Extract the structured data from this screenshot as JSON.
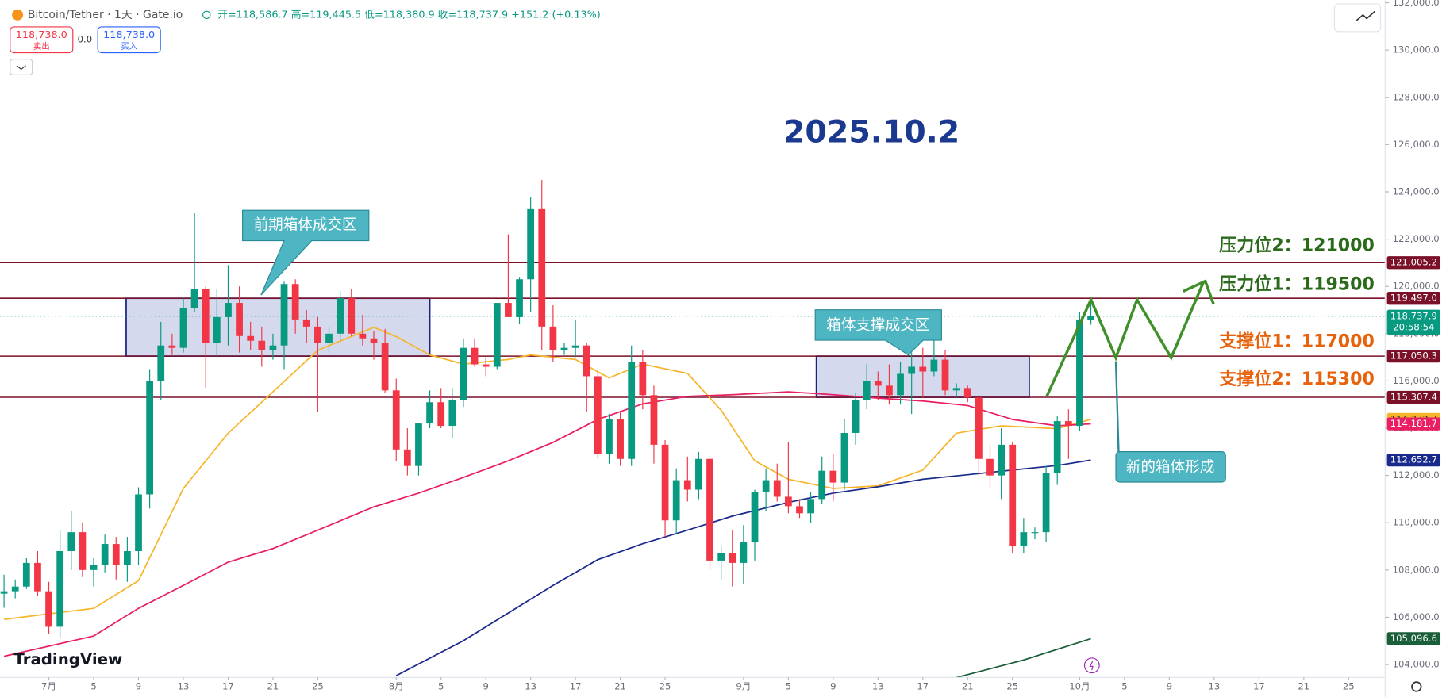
{
  "header": {
    "symbol": "Bitcoin/Tether · 1天 · Gate.io",
    "ohlc": "开=118,586.7 高=119,445.5 低=118,380.9 收=118,737.9 +151.2 (+0.13%)",
    "sell_price": "118,738.0",
    "sell": "卖出",
    "spread": "0.0",
    "buy_price": "118,738.0",
    "buy": "买入"
  },
  "logo": "TradingView",
  "chart_data": {
    "type": "candlestick",
    "title": "2025.10.2",
    "x": [
      -4,
      -3,
      -2,
      -1,
      0,
      1,
      2,
      3,
      4,
      5,
      6,
      7,
      8,
      9,
      10,
      11,
      12,
      13,
      14,
      15,
      16,
      17,
      18,
      19,
      20,
      21,
      22,
      23,
      24,
      25,
      26,
      27,
      28,
      29,
      30,
      31,
      32,
      33,
      34,
      35,
      36,
      37,
      38,
      39,
      40,
      41,
      42,
      43,
      44,
      45,
      46,
      47,
      48,
      49,
      50,
      51,
      52,
      53,
      54,
      55,
      56,
      57,
      58,
      59,
      60,
      61,
      62,
      63,
      64,
      65,
      66,
      67,
      68,
      69,
      70,
      71,
      72,
      73,
      74,
      75,
      76,
      77,
      78,
      79,
      80,
      81,
      82,
      83,
      84,
      85,
      86,
      87,
      88,
      89,
      90,
      91,
      92,
      93
    ],
    "open": [
      107000,
      107100,
      107300,
      108300,
      107100,
      105600,
      108800,
      109600,
      108000,
      108200,
      109100,
      108200,
      108800,
      111200,
      116000,
      117500,
      117400,
      119100,
      119900,
      117600,
      118700,
      119300,
      117900,
      117700,
      117300,
      117500,
      120100,
      118600,
      118300,
      117600,
      118000,
      119500,
      118000,
      117800,
      117600,
      115600,
      113100,
      112400,
      114200,
      115100,
      114100,
      115200,
      117400,
      116700,
      116600,
      119300,
      118700,
      120300,
      123300,
      118300,
      117300,
      117400,
      117500,
      116200,
      112900,
      114400,
      112700,
      116800,
      115400,
      113300,
      110100,
      111800,
      111400,
      112700,
      108400,
      108700,
      108300,
      109200,
      111300,
      111800,
      111100,
      110700,
      110400,
      111000,
      112200,
      111700,
      113800,
      115200,
      116000,
      115800,
      115400,
      116300,
      116600,
      116400,
      116900,
      115600,
      115700,
      115300,
      112700,
      112000,
      113300,
      109000,
      109600,
      109600,
      112100,
      114300,
      114100,
      118586.7
    ],
    "high": [
      107800,
      107600,
      108500,
      108800,
      107500,
      109700,
      110500,
      110000,
      108500,
      109500,
      109400,
      109400,
      111500,
      116500,
      118500,
      118000,
      119500,
      123100,
      120000,
      119900,
      120900,
      120000,
      118500,
      118300,
      118000,
      120200,
      120300,
      119000,
      118700,
      118300,
      119800,
      119900,
      118800,
      118100,
      118200,
      116100,
      114000,
      114200,
      115600,
      115700,
      115700,
      117800,
      117800,
      117000,
      119300,
      122200,
      120400,
      123800,
      124500,
      119200,
      117600,
      118600,
      117600,
      116400,
      114600,
      114700,
      117500,
      117300,
      115800,
      113500,
      112300,
      112800,
      113000,
      112800,
      109000,
      109700,
      109900,
      111400,
      112300,
      112500,
      113400,
      111000,
      111300,
      112800,
      112900,
      114400,
      115500,
      116700,
      116400,
      116700,
      116800,
      117200,
      117400,
      117900,
      117300,
      115900,
      115800,
      115400,
      113300,
      114000,
      113400,
      110200,
      109800,
      112400,
      114500,
      114800,
      118900,
      119445.5
    ],
    "low": [
      106400,
      106800,
      107200,
      106900,
      105300,
      105100,
      108000,
      107700,
      107300,
      107900,
      107600,
      107500,
      108200,
      110600,
      115200,
      117100,
      117200,
      118900,
      115700,
      117000,
      117500,
      117200,
      117300,
      116600,
      116900,
      116500,
      118000,
      117600,
      114700,
      117200,
      117700,
      117900,
      117500,
      116900,
      115500,
      112600,
      112000,
      112000,
      114000,
      114000,
      113600,
      114900,
      116600,
      116200,
      116500,
      118700,
      118400,
      118900,
      117300,
      116800,
      117100,
      117000,
      114700,
      112700,
      112500,
      112400,
      112400,
      114800,
      112500,
      109400,
      109500,
      110900,
      111000,
      108000,
      107600,
      107300,
      107400,
      108400,
      110500,
      110900,
      110400,
      110200,
      110000,
      110800,
      110900,
      111400,
      113300,
      114800,
      115200,
      115000,
      115000,
      114600,
      115300,
      116200,
      115400,
      115300,
      115100,
      112000,
      111500,
      111000,
      108700,
      108700,
      109300,
      109200,
      111600,
      112700,
      113900,
      118380.9
    ],
    "close": [
      107100,
      107300,
      108300,
      107100,
      105600,
      108800,
      109600,
      108000,
      108200,
      109100,
      108200,
      108800,
      111200,
      116000,
      117500,
      117400,
      119100,
      119900,
      117600,
      118700,
      119300,
      117900,
      117700,
      117300,
      117500,
      120100,
      118600,
      118300,
      117600,
      118000,
      119500,
      118000,
      117800,
      117600,
      115600,
      113100,
      112400,
      114200,
      115100,
      114100,
      115200,
      117400,
      116700,
      116600,
      119300,
      118700,
      120300,
      123300,
      118300,
      117300,
      117400,
      117500,
      116200,
      112900,
      114400,
      112700,
      116800,
      115400,
      113300,
      110100,
      111800,
      111400,
      112700,
      108400,
      108700,
      108300,
      109200,
      111300,
      111800,
      111100,
      110700,
      110400,
      111000,
      112200,
      111700,
      113800,
      115200,
      116000,
      115800,
      115400,
      116300,
      116600,
      116400,
      116900,
      115600,
      115700,
      115300,
      112700,
      112000,
      113300,
      109000,
      109600,
      109600,
      112100,
      114300,
      114100,
      118600,
      118737.9
    ],
    "up_color": "#089981",
    "down_color": "#f23645",
    "last_price_label": "118,737.9",
    "countdown": "20:58:54",
    "ma_lines": [
      {
        "color": "#f7b52c",
        "x": [
          -4,
          4,
          8,
          12,
          16,
          20,
          24,
          29,
          31,
          34,
          37,
          41,
          43,
          47,
          50,
          53,
          57,
          60,
          63,
          66,
          70,
          74,
          78,
          81,
          85,
          90,
          93
        ],
        "values": [
          105910,
          106380,
          107550,
          111450,
          113790,
          115540,
          117300,
          118270,
          117880,
          117100,
          116710,
          116910,
          117100,
          116910,
          116130,
          116710,
          116320,
          114760,
          112620,
          111840,
          111450,
          111560,
          112230,
          113790,
          114100,
          113980,
          114372.7
        ],
        "value_label": "114,372.7"
      },
      {
        "color": "#e91e63",
        "x": [
          -4,
          4,
          8,
          12,
          16,
          20,
          24,
          29,
          33,
          37,
          41,
          45,
          49,
          53,
          57,
          61,
          66,
          70,
          74,
          78,
          82,
          86,
          90,
          93
        ],
        "values": [
          104350,
          105210,
          106380,
          107350,
          108330,
          108910,
          109690,
          110670,
          111250,
          111920,
          112620,
          113400,
          114370,
          115030,
          115350,
          115420,
          115540,
          115420,
          115270,
          115150,
          114960,
          114370,
          114100,
          114181.7
        ],
        "value_label": "114,181.7"
      },
      {
        "color": "#1a2a8c",
        "x": [
          31,
          37,
          41,
          45,
          49,
          53,
          57,
          61,
          66,
          70,
          74,
          78,
          82,
          86,
          90,
          93
        ],
        "values": [
          103530,
          105010,
          106180,
          107350,
          108440,
          109110,
          109690,
          110280,
          110860,
          111250,
          111520,
          111840,
          112030,
          112230,
          112420,
          112652.7
        ],
        "value_label": "112,652.7"
      },
      {
        "color": "#1b5e3a",
        "x": [
          81,
          87,
          93
        ],
        "values": [
          103450,
          104190,
          105096.6
        ],
        "value_label": "105,096.6"
      }
    ],
    "levels": [
      {
        "value": 121005.2,
        "label": "121,005.2"
      },
      {
        "value": 119497.0,
        "label": "119,497.0"
      },
      {
        "value": 117050.3,
        "label": "117,050.3"
      },
      {
        "value": 115307.4,
        "label": "115,307.4"
      }
    ],
    "level_color": "#7b1128",
    "annotations": [
      "压力位2：121000",
      "压力位1：119500",
      "支撑位1：117000",
      "支撑位2：115300"
    ],
    "callouts": [
      "前期箱体成交区",
      "箱体支撑成交区",
      "新的箱体形成"
    ],
    "xlim": [
      -4.36,
      119.26
    ],
    "xticks": [
      {
        "value": 0,
        "label": "7月"
      },
      {
        "value": 4,
        "label": "5"
      },
      {
        "value": 8,
        "label": "9"
      },
      {
        "value": 12,
        "label": "13"
      },
      {
        "value": 16,
        "label": "17"
      },
      {
        "value": 20,
        "label": "21"
      },
      {
        "value": 24,
        "label": "25"
      },
      {
        "value": 31,
        "label": "8月"
      },
      {
        "value": 35,
        "label": "5"
      },
      {
        "value": 39,
        "label": "9"
      },
      {
        "value": 43,
        "label": "13"
      },
      {
        "value": 47,
        "label": "17"
      },
      {
        "value": 51,
        "label": "21"
      },
      {
        "value": 55,
        "label": "25"
      },
      {
        "value": 62,
        "label": "9月"
      },
      {
        "value": 66,
        "label": "5"
      },
      {
        "value": 70,
        "label": "9"
      },
      {
        "value": 74,
        "label": "13"
      },
      {
        "value": 78,
        "label": "17"
      },
      {
        "value": 82,
        "label": "21"
      },
      {
        "value": 86,
        "label": "25"
      },
      {
        "value": 92,
        "label": "10月"
      },
      {
        "value": 96,
        "label": "5"
      },
      {
        "value": 100,
        "label": "9"
      },
      {
        "value": 104,
        "label": "13"
      },
      {
        "value": 108,
        "label": "17"
      },
      {
        "value": 112,
        "label": "21"
      },
      {
        "value": 116,
        "label": "25"
      }
    ],
    "ylim": [
      103454,
      132110
    ],
    "yticks": [
      {
        "value": 104000,
        "label": "104,000.0"
      },
      {
        "value": 106000,
        "label": "106,000.0"
      },
      {
        "value": 108000,
        "label": "108,000.0"
      },
      {
        "value": 110000,
        "label": "110,000.0"
      },
      {
        "value": 112000,
        "label": "112,000.0"
      },
      {
        "value": 114000,
        "label": "114,000.0"
      },
      {
        "value": 116000,
        "label": "116,000.0"
      },
      {
        "value": 118000,
        "label": "118,000.0"
      },
      {
        "value": 120000,
        "label": "120,000.0"
      },
      {
        "value": 122000,
        "label": "122,000.0"
      },
      {
        "value": 124000,
        "label": "124,000.0"
      },
      {
        "value": 126000,
        "label": "126,000.0"
      },
      {
        "value": 128000,
        "label": "128,000.0"
      },
      {
        "value": 130000,
        "label": "130,000.0"
      },
      {
        "value": 132000,
        "label": "132,000.0"
      }
    ]
  }
}
